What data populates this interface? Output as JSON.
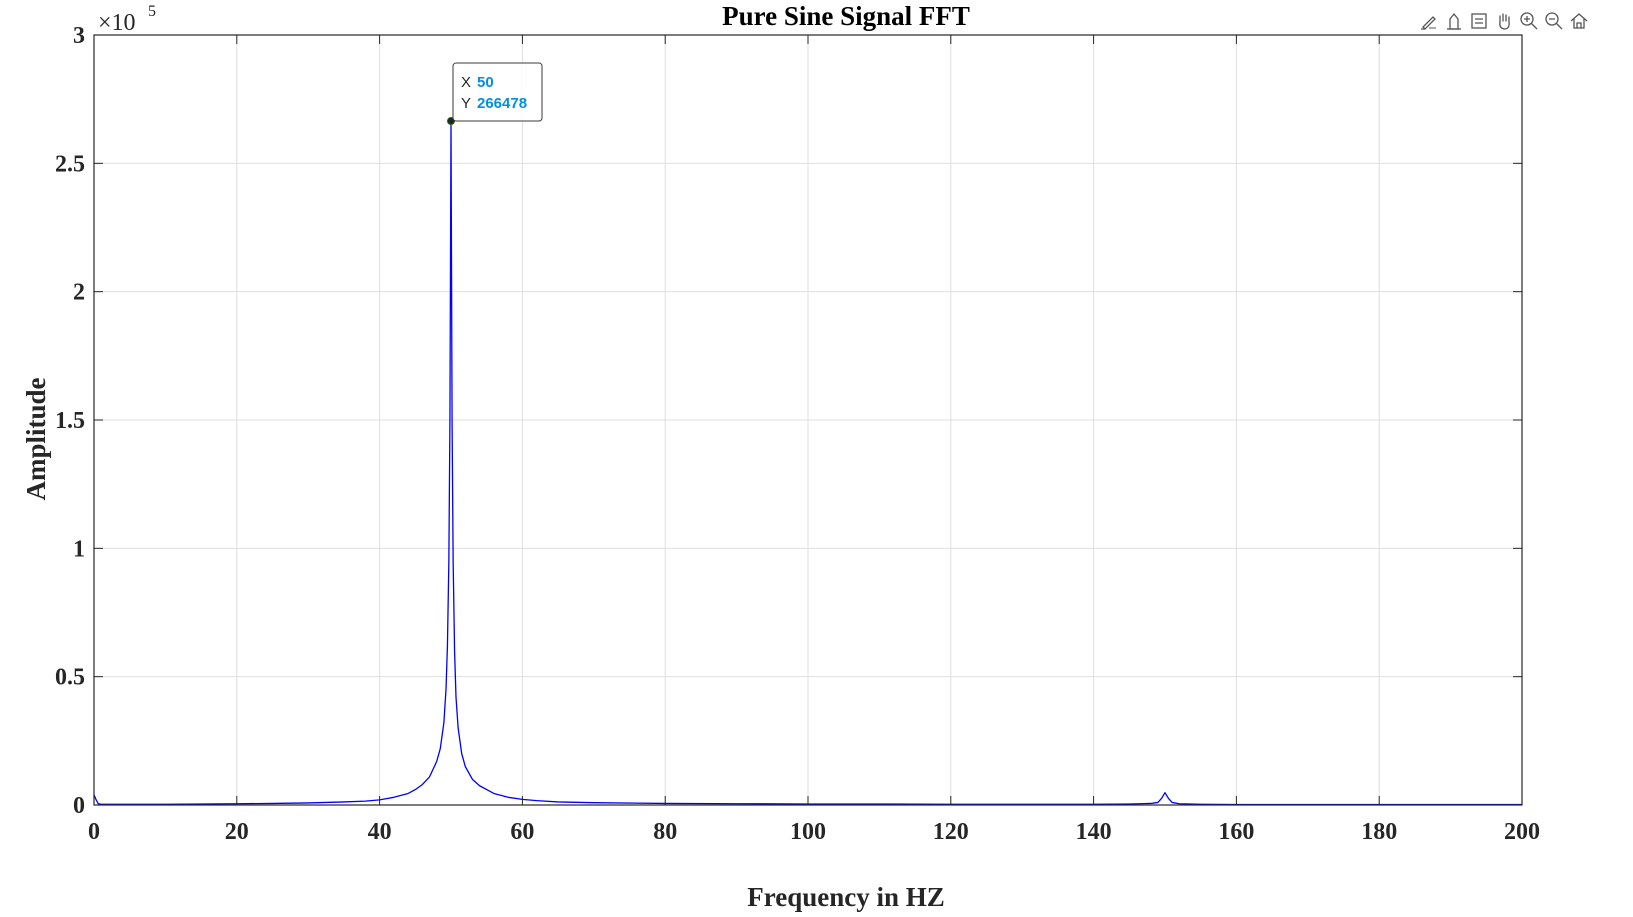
{
  "toolbar": {
    "icons": [
      "brush-icon",
      "data-tips-icon",
      "restore-view-icon",
      "pan-icon",
      "zoom-in-icon",
      "zoom-out-icon",
      "home-icon"
    ]
  },
  "chart_data": {
    "type": "line",
    "title": "Pure Sine Signal FFT",
    "xlabel": "Frequency in HZ",
    "ylabel": "Amplitude",
    "exponent_label": "×10",
    "exponent_power": "5",
    "xlim": [
      0,
      200
    ],
    "ylim": [
      0,
      3
    ],
    "y_scale_factor": 100000,
    "xticks": [
      0,
      20,
      40,
      60,
      80,
      100,
      120,
      140,
      160,
      180,
      200
    ],
    "yticks": [
      0,
      0.5,
      1,
      1.5,
      2,
      2.5,
      3
    ],
    "xtick_labels": [
      "0",
      "20",
      "40",
      "60",
      "80",
      "100",
      "120",
      "140",
      "160",
      "180",
      "200"
    ],
    "ytick_labels": [
      "0",
      "0.5",
      "1",
      "1.5",
      "2",
      "2.5",
      "3"
    ],
    "grid": true,
    "series": [
      {
        "color": "#0000ff",
        "x": [
          0,
          0.3,
          0.6,
          1,
          5,
          10,
          15,
          20,
          25,
          30,
          35,
          38,
          40,
          42,
          44,
          45,
          46,
          47,
          48,
          48.5,
          49,
          49.3,
          49.5,
          49.7,
          49.85,
          50,
          50.15,
          50.3,
          50.5,
          50.7,
          51,
          51.5,
          52,
          53,
          54,
          55,
          56,
          58,
          60,
          62,
          65,
          70,
          80,
          90,
          100,
          110,
          120,
          130,
          140,
          145,
          148,
          149,
          149.5,
          150,
          150.5,
          151,
          152,
          155,
          160,
          170,
          180,
          190,
          200
        ],
        "y": [
          0.04,
          0.02,
          0.005,
          0.003,
          0.003,
          0.003,
          0.004,
          0.005,
          0.006,
          0.008,
          0.012,
          0.015,
          0.02,
          0.03,
          0.045,
          0.06,
          0.08,
          0.11,
          0.17,
          0.22,
          0.32,
          0.45,
          0.62,
          0.95,
          1.5,
          2.66478,
          1.5,
          0.95,
          0.6,
          0.42,
          0.3,
          0.2,
          0.15,
          0.1,
          0.075,
          0.06,
          0.045,
          0.03,
          0.022,
          0.017,
          0.012,
          0.009,
          0.006,
          0.005,
          0.004,
          0.004,
          0.003,
          0.003,
          0.003,
          0.004,
          0.006,
          0.01,
          0.025,
          0.048,
          0.025,
          0.01,
          0.005,
          0.003,
          0.002,
          0.002,
          0.002,
          0.002,
          0.002
        ]
      }
    ],
    "datatip": {
      "x_label": "X",
      "x_value": "50",
      "y_label": "Y",
      "y_value": "266478",
      "point": [
        50,
        2.66478
      ],
      "value_color": "#0090e0"
    }
  }
}
